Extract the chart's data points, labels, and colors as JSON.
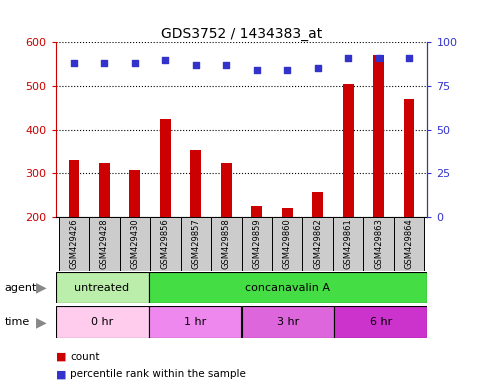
{
  "title": "GDS3752 / 1434383_at",
  "samples": [
    "GSM429426",
    "GSM429428",
    "GSM429430",
    "GSM429856",
    "GSM429857",
    "GSM429858",
    "GSM429859",
    "GSM429860",
    "GSM429862",
    "GSM429861",
    "GSM429863",
    "GSM429864"
  ],
  "counts": [
    330,
    323,
    308,
    425,
    353,
    323,
    225,
    220,
    258,
    505,
    570,
    470
  ],
  "percentile_ranks": [
    88,
    88,
    88,
    90,
    87,
    87,
    84,
    84,
    85,
    91,
    91,
    91
  ],
  "ylim_left": [
    200,
    600
  ],
  "ylim_right": [
    0,
    100
  ],
  "yticks_left": [
    200,
    300,
    400,
    500,
    600
  ],
  "yticks_right": [
    0,
    25,
    50,
    75,
    100
  ],
  "bar_color": "#cc0000",
  "dot_color": "#3333cc",
  "agent_labels": [
    {
      "label": "untreated",
      "start": 0,
      "end": 3,
      "color": "#bbeeaa"
    },
    {
      "label": "concanavalin A",
      "start": 3,
      "end": 12,
      "color": "#44dd44"
    }
  ],
  "time_labels": [
    {
      "label": "0 hr",
      "start": 0,
      "end": 3,
      "color": "#ffccee"
    },
    {
      "label": "1 hr",
      "start": 3,
      "end": 6,
      "color": "#ee88ee"
    },
    {
      "label": "3 hr",
      "start": 6,
      "end": 9,
      "color": "#dd66dd"
    },
    {
      "label": "6 hr",
      "start": 9,
      "end": 12,
      "color": "#cc33cc"
    }
  ],
  "legend_count_color": "#cc0000",
  "legend_dot_color": "#3333cc",
  "left_tick_color": "#cc0000",
  "right_tick_color": "#3333cc",
  "sample_box_color": "#cccccc",
  "figsize": [
    4.83,
    3.84
  ],
  "dpi": 100
}
